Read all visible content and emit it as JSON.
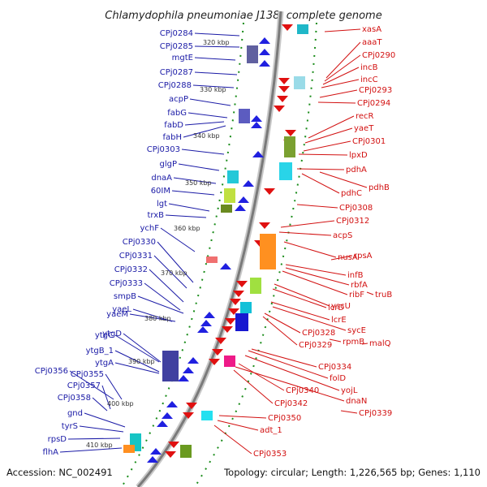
{
  "title": "Chlamydophila pneumoniae J138, complete genome",
  "footer": {
    "accession": "Accession: NC_002491",
    "topology": "Topology: circular; Length: 1,226,565 bp; Genes: 1,110"
  },
  "scale_labels": [
    "320 kbp",
    "330 kbp",
    "340 kbp",
    "350 kbp",
    "360 kbp",
    "370 kbp",
    "380 kbp",
    "390 kbp",
    "400 kbp",
    "410 kbp"
  ],
  "left_genes": [
    "CPj0284",
    "CPj0285",
    "mgtE",
    "CPj0287",
    "CPj0288",
    "acpP",
    "fabG",
    "fabD",
    "fabH",
    "CPj0303",
    "glgP",
    "dnaA",
    "60IM",
    "lgt",
    "trxB",
    "ychF",
    "CPj0330",
    "CPj0331",
    "CPj0332",
    "CPj0333",
    "smpB",
    "yaeM",
    "yaeL",
    "ytgC",
    "ytgD",
    "ytgB_1",
    "ytgA",
    "CPj0356",
    "CPj0355",
    "CPj0357",
    "CPj0358",
    "gnd",
    "tyrS",
    "rpsD",
    "flhA"
  ],
  "right_genes": [
    "xasA",
    "aaaT",
    "CPj0290",
    "incB",
    "incC",
    "CPj0293",
    "CPj0294",
    "recR",
    "yaeT",
    "CPj0301",
    "lpxD",
    "pdhA",
    "pdhB",
    "pdhC",
    "CPj0308",
    "CPj0312",
    "acpS",
    "nusA",
    "rpsA",
    "infB",
    "rbfA",
    "ribF",
    "truB",
    "yscU",
    "lcrD",
    "lcrE",
    "sycE",
    "CPj0328",
    "rpmB",
    "malQ",
    "CPj0329",
    "CPj0334",
    "folD",
    "yojL",
    "CPj0340",
    "dnaN",
    "CPj0342",
    "CPj0339",
    "CPj0350",
    "adt_1",
    "CPj0353"
  ],
  "colors": {
    "forward_strand": "#2020e0",
    "reverse_strand": "#e01010",
    "backbone": "#808080",
    "tick": "#1a8c1a"
  }
}
